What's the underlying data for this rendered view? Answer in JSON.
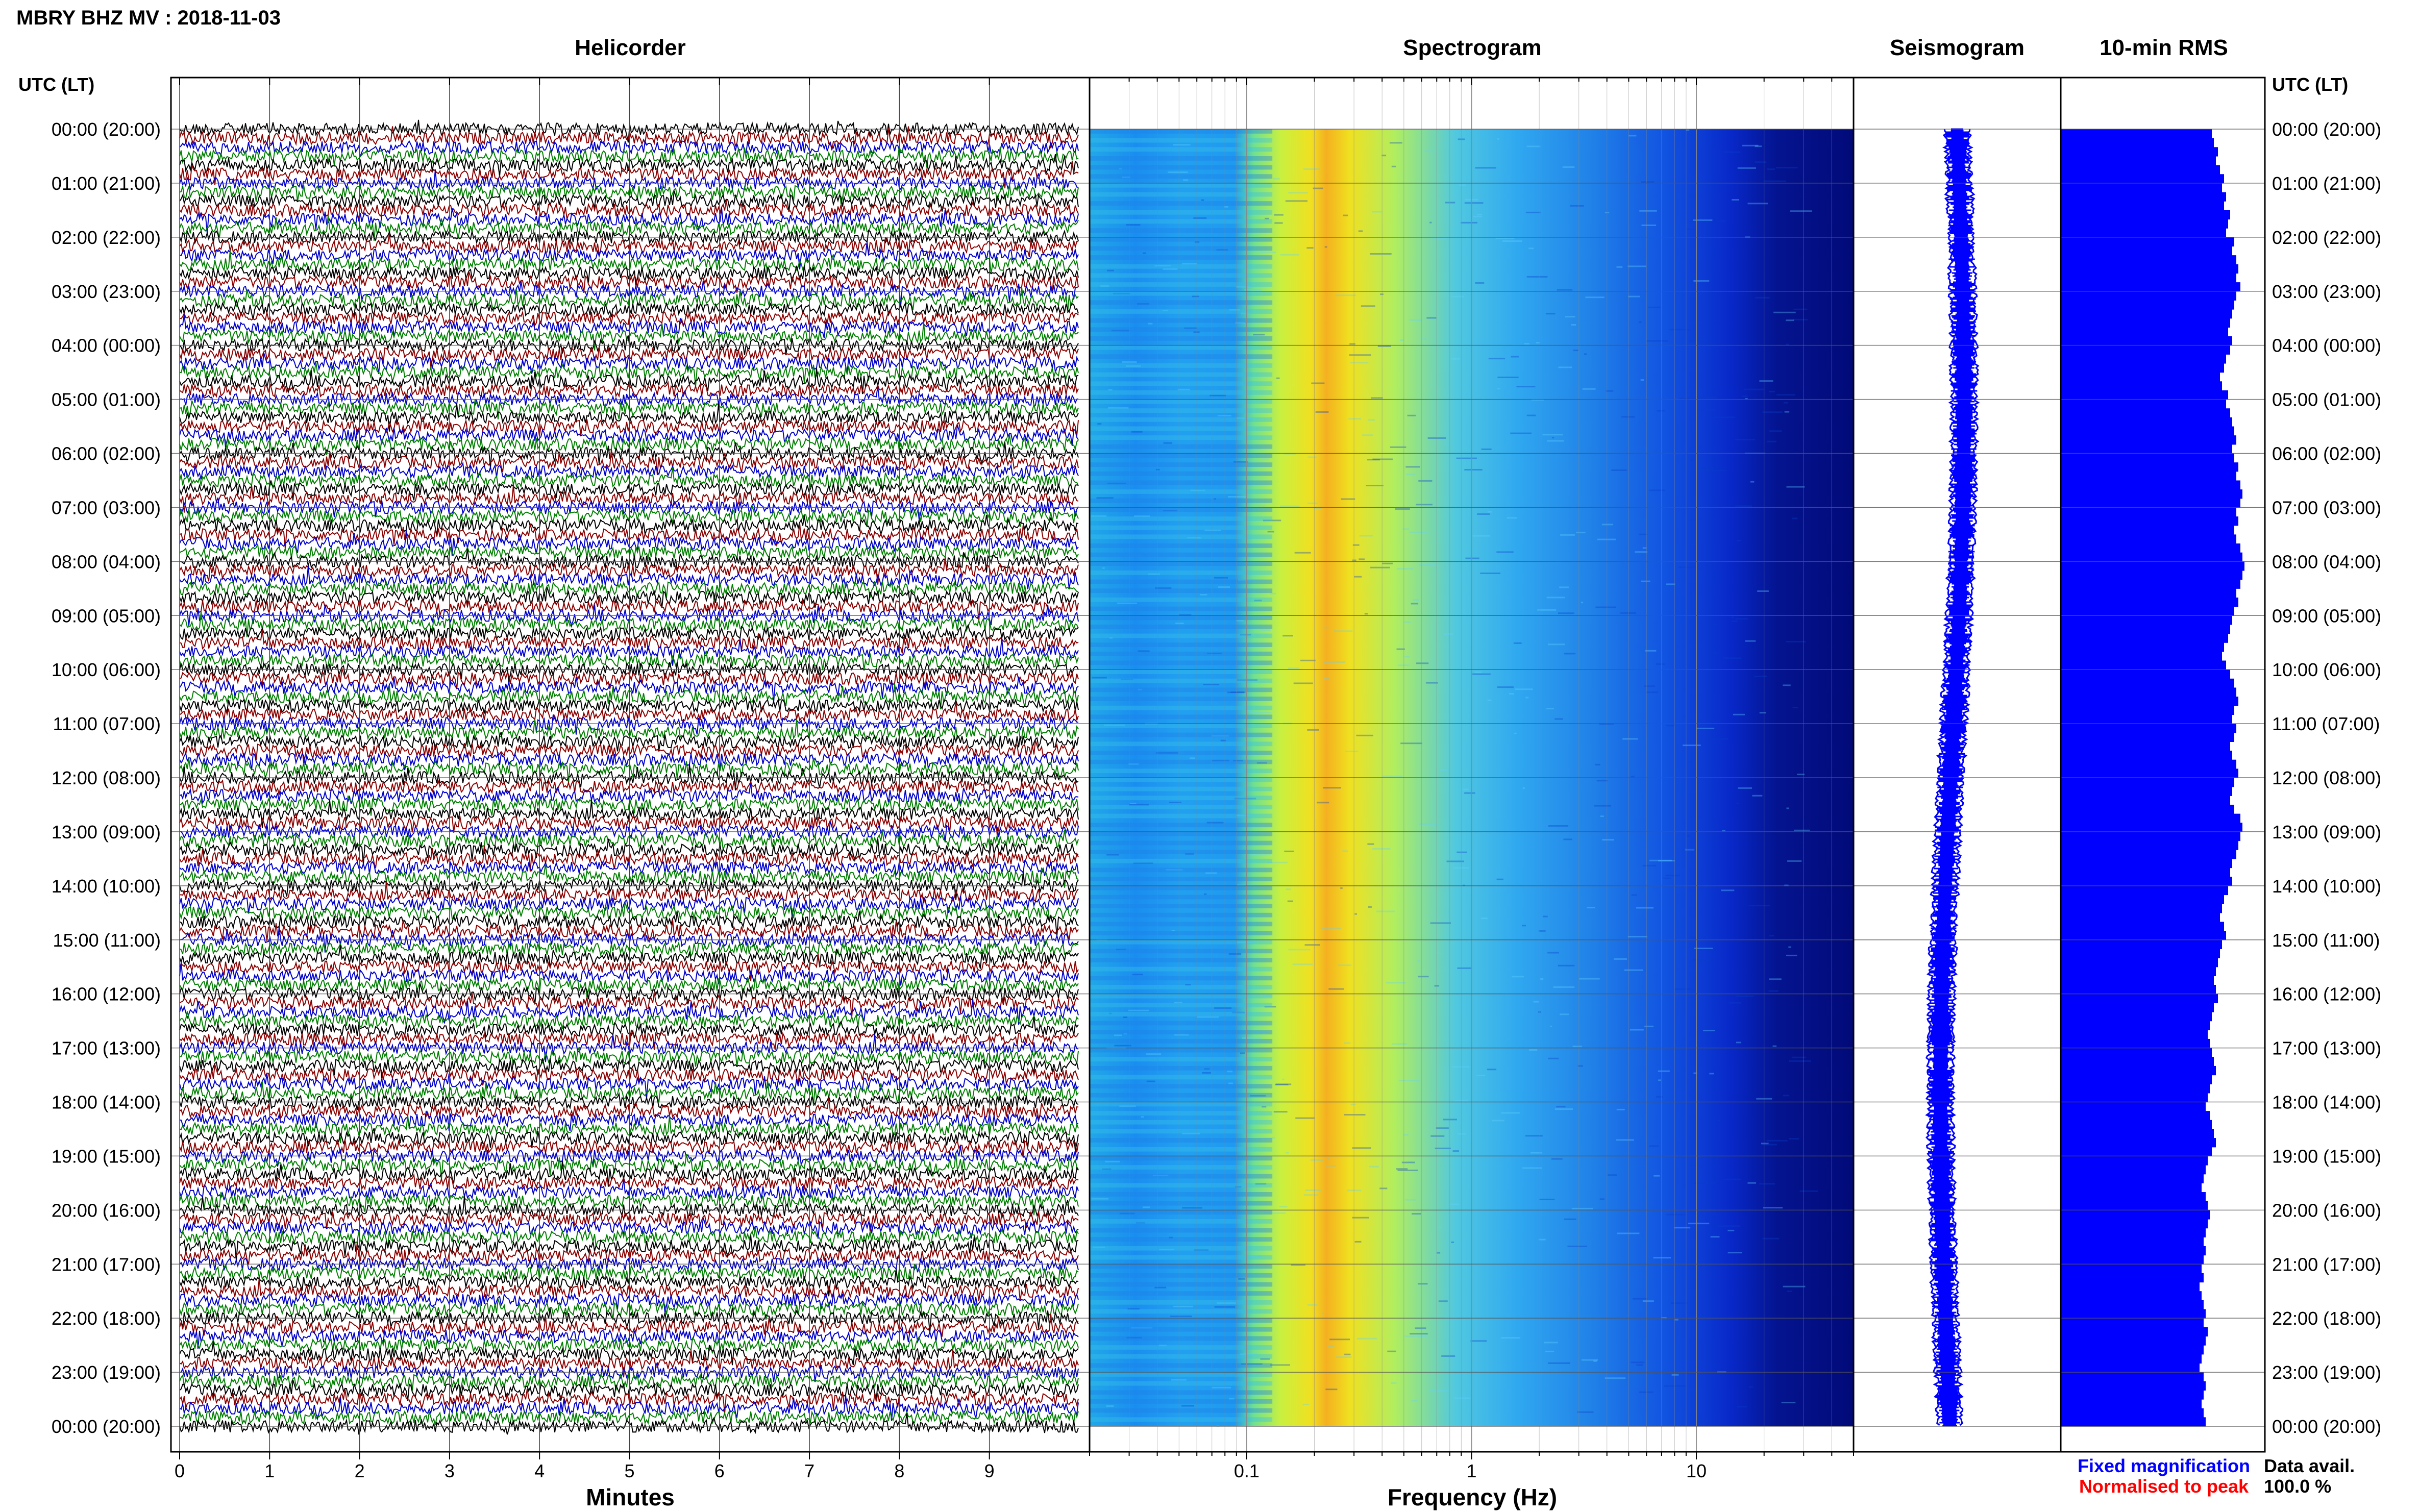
{
  "title": "MBRY BHZ MV : 2018-11-03",
  "panels": {
    "helicorder": "Helicorder",
    "spectrogram": "Spectrogram",
    "seismogram": "Seismogram",
    "rms": "10-min RMS"
  },
  "time_axis_label": "UTC (LT)",
  "helicorder_xlabel": "Minutes",
  "spectrogram_xlabel": "Frequency (Hz)",
  "legend": {
    "fixed": "Fixed magnification",
    "normalised": "Normalised to peak",
    "fixed_color": "#0000ff",
    "normalised_color": "#ff0000"
  },
  "data_avail": {
    "label": "Data avail.",
    "value": "100.0 %"
  },
  "colors": {
    "trace_cycle": [
      "#000000",
      "#8b0000",
      "#0000cd",
      "#008000"
    ],
    "rms_bar": "#0000ff",
    "seismogram": "#0000ff"
  },
  "chart_data": [
    {
      "type": "line",
      "panel": "Helicorder",
      "xlabel": "Minutes",
      "xlim": [
        0,
        10
      ],
      "x_ticks": [
        "0",
        "1",
        "2",
        "3",
        "4",
        "5",
        "6",
        "7",
        "8",
        "9"
      ],
      "y_tick_labels": [
        "00:00 (20:00)",
        "01:00 (21:00)",
        "02:00 (22:00)",
        "03:00 (23:00)",
        "04:00 (00:00)",
        "05:00 (01:00)",
        "06:00 (02:00)",
        "07:00 (03:00)",
        "08:00 (04:00)",
        "09:00 (05:00)",
        "10:00 (06:00)",
        "11:00 (07:00)",
        "12:00 (08:00)",
        "13:00 (09:00)",
        "14:00 (10:00)",
        "15:00 (11:00)",
        "16:00 (12:00)",
        "17:00 (13:00)",
        "18:00 (14:00)",
        "19:00 (15:00)",
        "20:00 (16:00)",
        "21:00 (17:00)",
        "22:00 (18:00)",
        "23:00 (19:00)",
        "00:00 (20:00)"
      ],
      "lines_per_hour": 6,
      "minutes_per_line": 10
    },
    {
      "type": "heatmap",
      "panel": "Spectrogram",
      "xlabel": "Frequency (Hz)",
      "x_scale": "log",
      "xlim": [
        0.02,
        50
      ],
      "x_ticks": [
        "0.1",
        "1",
        "10"
      ],
      "peak_frequency_hz": 0.3,
      "colormap": "jet"
    },
    {
      "type": "line",
      "panel": "Seismogram",
      "color": "#0000ff"
    },
    {
      "type": "bar",
      "panel": "10-min RMS",
      "orientation": "horizontal",
      "color": "#0000ff",
      "values": [
        74,
        75,
        77,
        76,
        78,
        80,
        79,
        81,
        80,
        83,
        82,
        81,
        85,
        84,
        86,
        87,
        86,
        88,
        86,
        85,
        84,
        83,
        82,
        84,
        83,
        81,
        80,
        78,
        79,
        82,
        81,
        83,
        84,
        85,
        86,
        84,
        85,
        87,
        86,
        88,
        89,
        88,
        86,
        87,
        85,
        86,
        88,
        89,
        90,
        89,
        88,
        86,
        87,
        85,
        84,
        83,
        82,
        80,
        79,
        81,
        83,
        85,
        86,
        87,
        85,
        84,
        86,
        85,
        83,
        84,
        86,
        87,
        85,
        84,
        83,
        85,
        88,
        89,
        88,
        87,
        86,
        84,
        83,
        84,
        82,
        80,
        79,
        78,
        80,
        81,
        79,
        78,
        77,
        76,
        75,
        76,
        77,
        75,
        74,
        73,
        72,
        73,
        74,
        75,
        76,
        74,
        73,
        72,
        71,
        73,
        74,
        75,
        76,
        74,
        72,
        71,
        70,
        69,
        71,
        72,
        73,
        72,
        71,
        70,
        71,
        70,
        69,
        70,
        68,
        69,
        70,
        71,
        70,
        72,
        71,
        70,
        69,
        68,
        70,
        71,
        70,
        69,
        70,
        71
      ]
    }
  ]
}
